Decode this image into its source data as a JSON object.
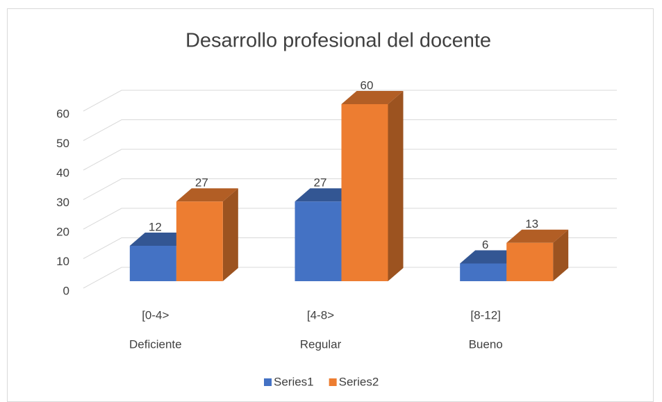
{
  "chart_data": {
    "type": "bar3d",
    "title": "Desarrollo profesional del docente",
    "categories": [
      [
        "[0-4>",
        "Deficiente"
      ],
      [
        "[4-8>",
        "Regular"
      ],
      [
        "[8-12]",
        "Bueno"
      ]
    ],
    "series": [
      {
        "name": "Series1",
        "color": "#4472c4",
        "values": [
          12,
          27,
          6
        ]
      },
      {
        "name": "Series2",
        "color": "#ed7d31",
        "values": [
          27,
          60,
          13
        ]
      }
    ],
    "ylim": [
      0,
      60
    ],
    "yticks": [
      0,
      10,
      20,
      30,
      40,
      50,
      60
    ],
    "grid": true,
    "legend": "bottom"
  }
}
